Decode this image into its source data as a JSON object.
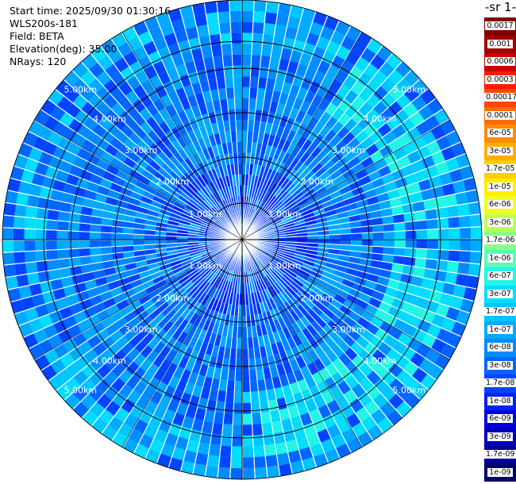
{
  "header": {
    "start_time": "Start time: 2025/09/30 01:30:16",
    "instrument": "WLS200s-181",
    "field": "Field: BETA",
    "elevation": "Elevation(deg): 35.00",
    "nrays": "NRays: 120"
  },
  "colorbar": {
    "title": "-1 sr-",
    "ticks": [
      "0.0017",
      "0.001",
      "0.0006",
      "0.0003",
      "0.00017",
      "0.0001",
      "6e-05",
      "3e-05",
      "1.7e-05",
      "1e-05",
      "6e-06",
      "3e-06",
      "1.7e-06",
      "1e-06",
      "6e-07",
      "3e-07",
      "1.7e-07",
      "1e-07",
      "6e-08",
      "3e-08",
      "1.7e-08",
      "1e-08",
      "6e-09",
      "3e-09",
      "1.7e-09",
      "1e-09"
    ],
    "colors": [
      "#7f0000",
      "#a30000",
      "#cc0000",
      "#ff1a00",
      "#ff4400",
      "#ff6a00",
      "#ff8c00",
      "#ffae00",
      "#ffd000",
      "#ffee00",
      "#eeff22",
      "#bbff55",
      "#88ff88",
      "#55ffbb",
      "#22f5e8",
      "#00ddff",
      "#00c6ff",
      "#00aaff",
      "#008cff",
      "#0066ff",
      "#0044ff",
      "#0022ee",
      "#0000dd",
      "#0000b8",
      "#000094",
      "#00006a"
    ]
  },
  "range_rings": {
    "labels": [
      "1.00km",
      "2.00km",
      "3.00km",
      "4.00km",
      "5.00km"
    ]
  }
}
